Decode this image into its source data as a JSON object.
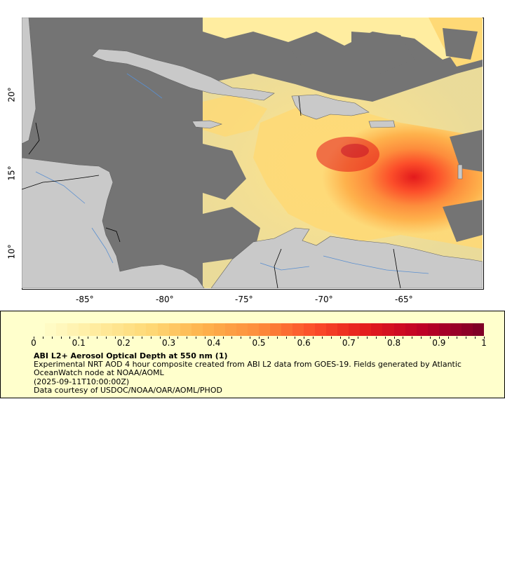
{
  "map": {
    "lon_ticks": [
      "-85°",
      "-80°",
      "-75°",
      "-70°",
      "-65°"
    ],
    "lat_ticks": [
      "10°",
      "15°",
      "20°"
    ],
    "colors": {
      "ocean_nodata": "#747474",
      "land": "#c9c9c9",
      "border": "#000000",
      "river": "#5a8fd0",
      "frame": "#000000"
    }
  },
  "legend": {
    "colorbar_ticks": [
      "0",
      "0.1",
      "0.2",
      "0.3",
      "0.4",
      "0.5",
      "0.6",
      "0.7",
      "0.8",
      "0.9",
      "1"
    ],
    "title": "ABI L2+ Aerosol Optical Depth at 550 nm (1)",
    "description": "Experimental NRT AOD 4 hour composite created from ABI L2 data from GOES-19. Fields generated by Atlantic OceanWatch node at NOAA/AOML",
    "date": "(2025-09-11T10:00:00Z)",
    "credit": "Data courtesy of USDOC/NOAA/OAR/AOML/PHOD",
    "colormap": [
      "#ffffcc",
      "#fff5b8",
      "#ffeda0",
      "#fee38b",
      "#fed976",
      "#fec661",
      "#feb24c",
      "#fd9f44",
      "#fd8d3c",
      "#fc6e33",
      "#fc4e2a",
      "#ef3323",
      "#e31a1c",
      "#d00d21",
      "#bd0026",
      "#9f0027",
      "#800026"
    ]
  }
}
